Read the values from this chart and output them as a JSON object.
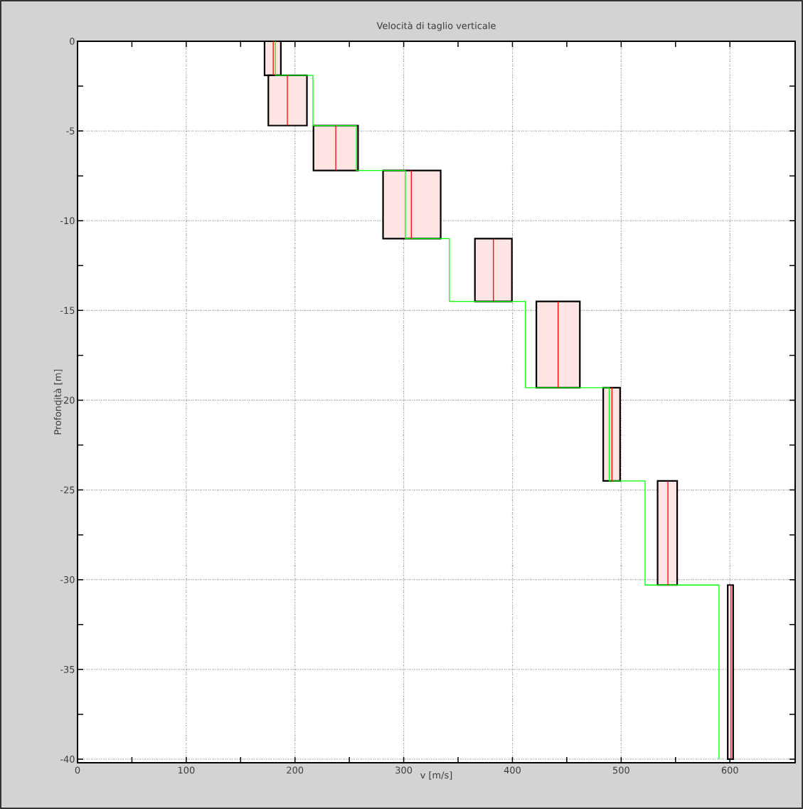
{
  "chart_data": {
    "type": "line",
    "title": "Velocità di taglio verticale",
    "xlabel": "v [m/s]",
    "ylabel": "Profondità [m]",
    "xlim": [
      0,
      660
    ],
    "ylim": [
      -40.2,
      0
    ],
    "xticks": [
      0,
      100,
      200,
      300,
      400,
      500,
      600
    ],
    "yticks": [
      0,
      -5,
      -10,
      -15,
      -20,
      -25,
      -30,
      -35,
      -40
    ],
    "grid": true,
    "series": [
      {
        "type": "area",
        "color": "#ffe4e4",
        "x": [
          172,
          187,
          187,
          172,
          172,
          null,
          175.5,
          211,
          211,
          175.5,
          175.5,
          null,
          217,
          258,
          258,
          217,
          217,
          null,
          281,
          334,
          334,
          281,
          281,
          null,
          365.5,
          399.5,
          399.5,
          365.5,
          365.5,
          null,
          422,
          462,
          462,
          422,
          422,
          null,
          483.5,
          499,
          499,
          483.5,
          483.5,
          null,
          533.5,
          551.5,
          551.5,
          533.5,
          533.5,
          null,
          598,
          603,
          603,
          598,
          598
        ],
        "values": [
          0,
          0,
          -1.9,
          -1.9,
          0,
          null,
          -1.9,
          -1.9,
          -4.7,
          -4.7,
          -1.9,
          null,
          -4.7,
          -4.7,
          -7.2,
          -7.2,
          -4.7,
          null,
          -7.2,
          -7.2,
          -11.0,
          -11.0,
          -7.2,
          null,
          -11.0,
          -11.0,
          -14.5,
          -14.5,
          -11.0,
          null,
          -14.5,
          -14.5,
          -19.3,
          -19.3,
          -14.5,
          null,
          -19.3,
          -19.3,
          -24.5,
          -24.5,
          -19.3,
          null,
          -24.5,
          -24.5,
          -30.3,
          -30.3,
          -24.5,
          null,
          -30.3,
          -30.3,
          -40,
          -40,
          -30.3
        ]
      },
      {
        "color": "#00ff00",
        "x": [
          182,
          182,
          216.5,
          216.5,
          256.5,
          256.5,
          301.5,
          301.5,
          342,
          342,
          412,
          412,
          489,
          489,
          522,
          522,
          590,
          590
        ],
        "values": [
          0,
          -1.9,
          -1.9,
          -4.7,
          -4.7,
          -7.2,
          -7.2,
          -11.0,
          -11.0,
          -14.5,
          -14.5,
          -19.3,
          -19.3,
          -24.5,
          -24.5,
          -30.3,
          -30.3,
          -40
        ]
      },
      {
        "type": "line",
        "color": "#ff0000",
        "x": [
          180,
          180,
          null,
          193,
          193,
          null,
          237.5,
          237.5,
          null,
          307,
          307,
          null,
          382.5,
          382.5,
          null,
          442,
          442,
          null,
          491.5,
          491.5,
          null,
          543,
          543,
          null,
          601,
          601
        ],
        "values": [
          0,
          -1.9,
          null,
          -1.9,
          -4.7,
          null,
          -4.7,
          -7.2,
          null,
          -7.2,
          -11.0,
          null,
          -11.0,
          -14.5,
          null,
          -14.5,
          -19.3,
          null,
          -19.3,
          -24.5,
          null,
          -24.5,
          -30.3,
          null,
          -30.3,
          -40
        ]
      }
    ]
  }
}
